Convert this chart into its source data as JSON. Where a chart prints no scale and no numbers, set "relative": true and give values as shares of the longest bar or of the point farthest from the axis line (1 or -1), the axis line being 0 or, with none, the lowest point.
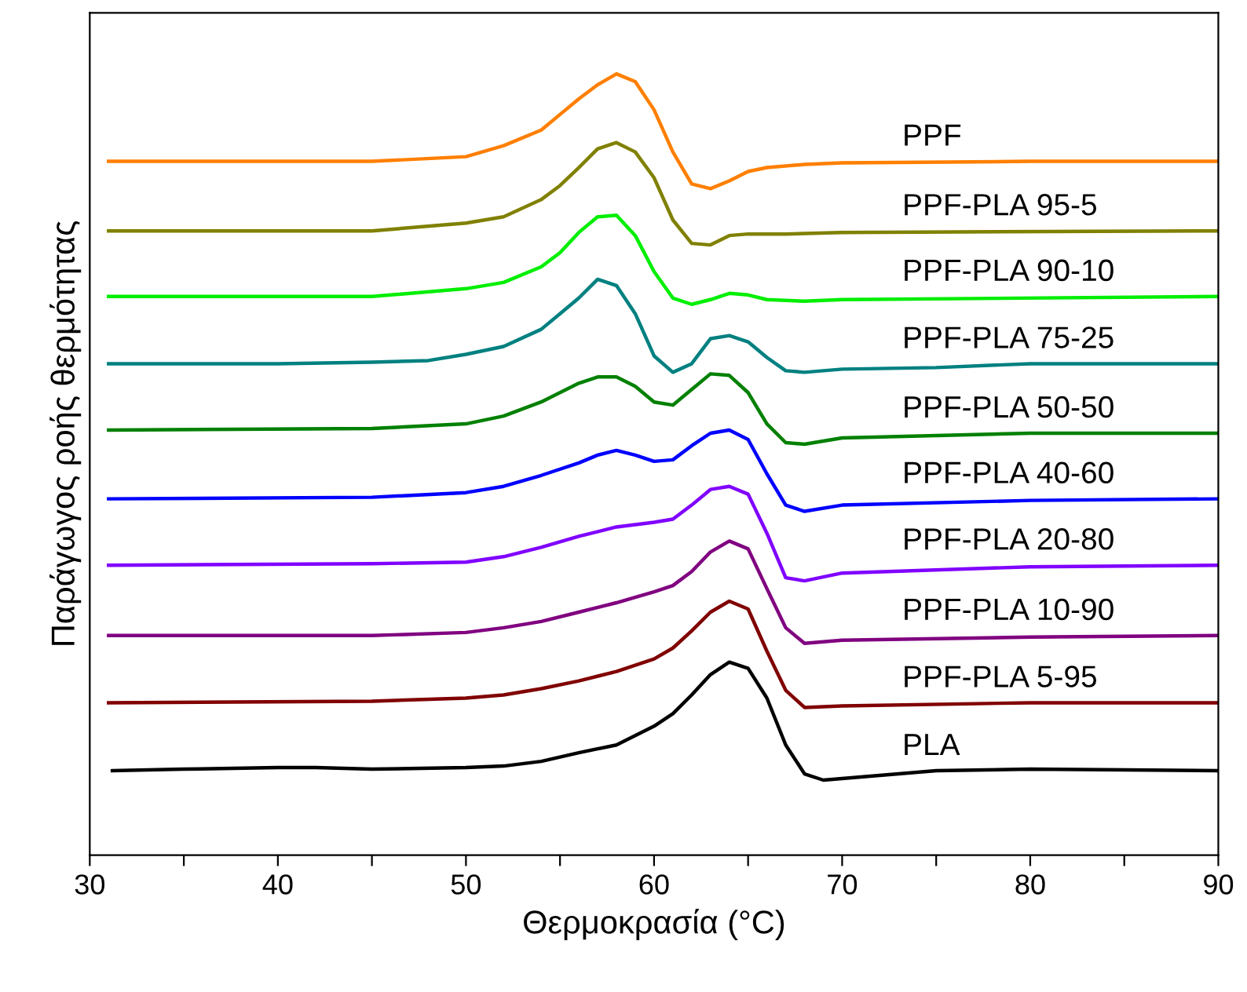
{
  "chart_data": {
    "type": "line",
    "relative": true,
    "xlabel": "Θερμοκρασία (°C)",
    "ylabel": "Παράγωγος ροής θερμότητας",
    "xlim": [
      30,
      90
    ],
    "xticks": [
      30,
      {
        "value": 35,
        "label": null
      },
      40,
      {
        "value": 45,
        "label": null
      },
      50,
      {
        "value": 55,
        "label": null
      },
      60,
      {
        "value": 65,
        "label": null
      },
      70,
      {
        "value": 75,
        "label": null
      },
      80,
      {
        "value": 85,
        "label": null
      },
      90
    ],
    "tick_labels": "x",
    "grid": false,
    "legend": false,
    "marker": "none",
    "line_style": "solid",
    "series": [
      {
        "name": "PPF",
        "color": "#ff7f00",
        "x": [
          31,
          45,
          50,
          52,
          54,
          55,
          56,
          57,
          58,
          59,
          60,
          61,
          62,
          63,
          64,
          65,
          66,
          68,
          70,
          80,
          90
        ],
        "values": [
          0.888,
          0.888,
          0.894,
          0.908,
          0.928,
          0.948,
          0.968,
          0.986,
          1,
          0.99,
          0.954,
          0.9,
          0.859,
          0.853,
          0.863,
          0.875,
          0.88,
          0.884,
          0.886,
          0.888,
          0.888
        ]
      },
      {
        "name": "PPF-PLA 95-5",
        "color": "#808000",
        "x": [
          31,
          45,
          50,
          52,
          54,
          55,
          56,
          57,
          58,
          59,
          60,
          61,
          62,
          63,
          64,
          65,
          67,
          70,
          90
        ],
        "values": [
          0.799,
          0.799,
          0.809,
          0.817,
          0.839,
          0.857,
          0.88,
          0.904,
          0.912,
          0.9,
          0.867,
          0.813,
          0.783,
          0.781,
          0.793,
          0.795,
          0.795,
          0.797,
          0.799
        ]
      },
      {
        "name": "PPF-PLA 90-10",
        "color": "#00ee00",
        "x": [
          31,
          45,
          50,
          52,
          54,
          55,
          56,
          57,
          58,
          59,
          60,
          61,
          62,
          63,
          64,
          65,
          66,
          68,
          70,
          90
        ],
        "values": [
          0.715,
          0.715,
          0.725,
          0.733,
          0.753,
          0.771,
          0.797,
          0.817,
          0.819,
          0.793,
          0.747,
          0.713,
          0.705,
          0.711,
          0.719,
          0.717,
          0.711,
          0.709,
          0.711,
          0.715
        ]
      },
      {
        "name": "PPF-PLA 75-25",
        "color": "#008080",
        "x": [
          31,
          40,
          45,
          48,
          50,
          52,
          54,
          55,
          56,
          57,
          58,
          59,
          60,
          61,
          62,
          63,
          64,
          65,
          66,
          67,
          68,
          70,
          75,
          80,
          90
        ],
        "values": [
          0.629,
          0.629,
          0.631,
          0.633,
          0.641,
          0.651,
          0.673,
          0.693,
          0.713,
          0.737,
          0.729,
          0.693,
          0.639,
          0.618,
          0.629,
          0.661,
          0.665,
          0.657,
          0.637,
          0.62,
          0.618,
          0.622,
          0.624,
          0.629,
          0.629
        ]
      },
      {
        "name": "PPF-PLA 50-50",
        "color": "#008000",
        "x": [
          31,
          45,
          50,
          52,
          54,
          56,
          57,
          58,
          59,
          60,
          61,
          62,
          63,
          64,
          65,
          66,
          67,
          68,
          70,
          80,
          90
        ],
        "values": [
          0.544,
          0.546,
          0.552,
          0.562,
          0.58,
          0.604,
          0.612,
          0.612,
          0.6,
          0.58,
          0.576,
          0.596,
          0.616,
          0.614,
          0.592,
          0.552,
          0.528,
          0.526,
          0.534,
          0.54,
          0.54
        ]
      },
      {
        "name": "PPF-PLA 40-60",
        "color": "#0000ff",
        "x": [
          31,
          45,
          50,
          52,
          54,
          56,
          57,
          58,
          59,
          60,
          61,
          62,
          63,
          64,
          65,
          66,
          67,
          68,
          70,
          80,
          90
        ],
        "values": [
          0.456,
          0.458,
          0.464,
          0.472,
          0.486,
          0.502,
          0.512,
          0.518,
          0.512,
          0.504,
          0.506,
          0.524,
          0.54,
          0.544,
          0.532,
          0.488,
          0.448,
          0.44,
          0.448,
          0.454,
          0.456
        ]
      },
      {
        "name": "PPF-PLA 20-80",
        "color": "#8000ff",
        "x": [
          31,
          45,
          50,
          52,
          54,
          56,
          58,
          60,
          61,
          62,
          63,
          64,
          65,
          66,
          67,
          68,
          70,
          80,
          90
        ],
        "values": [
          0.371,
          0.373,
          0.375,
          0.382,
          0.394,
          0.408,
          0.42,
          0.426,
          0.43,
          0.448,
          0.468,
          0.472,
          0.462,
          0.412,
          0.355,
          0.351,
          0.361,
          0.369,
          0.371
        ]
      },
      {
        "name": "PPF-PLA 10-90",
        "color": "#800080",
        "x": [
          31,
          45,
          50,
          52,
          54,
          56,
          58,
          60,
          61,
          62,
          63,
          64,
          65,
          66,
          67,
          68,
          70,
          80,
          90
        ],
        "values": [
          0.281,
          0.281,
          0.285,
          0.291,
          0.299,
          0.311,
          0.323,
          0.337,
          0.345,
          0.363,
          0.388,
          0.402,
          0.392,
          0.341,
          0.291,
          0.271,
          0.275,
          0.279,
          0.281
        ]
      },
      {
        "name": "PPF-PLA 5-95",
        "color": "#800000",
        "x": [
          31,
          45,
          50,
          52,
          54,
          56,
          58,
          60,
          61,
          62,
          63,
          64,
          65,
          66,
          67,
          68,
          70,
          80,
          90
        ],
        "values": [
          0.195,
          0.197,
          0.201,
          0.205,
          0.213,
          0.223,
          0.235,
          0.251,
          0.265,
          0.287,
          0.311,
          0.325,
          0.315,
          0.261,
          0.211,
          0.189,
          0.191,
          0.195,
          0.195
        ]
      },
      {
        "name": "PLA",
        "color": "#000000",
        "x": [
          31.2,
          35,
          40,
          42,
          45,
          50,
          52,
          54,
          56,
          58,
          60,
          61,
          62,
          63,
          64,
          65,
          66,
          67,
          68,
          69,
          70,
          75,
          80,
          90
        ],
        "values": [
          0.108,
          0.11,
          0.112,
          0.112,
          0.11,
          0.112,
          0.114,
          0.12,
          0.131,
          0.141,
          0.165,
          0.181,
          0.205,
          0.231,
          0.247,
          0.239,
          0.201,
          0.141,
          0.104,
          0.096,
          0.098,
          0.108,
          0.11,
          0.108
        ]
      }
    ]
  }
}
